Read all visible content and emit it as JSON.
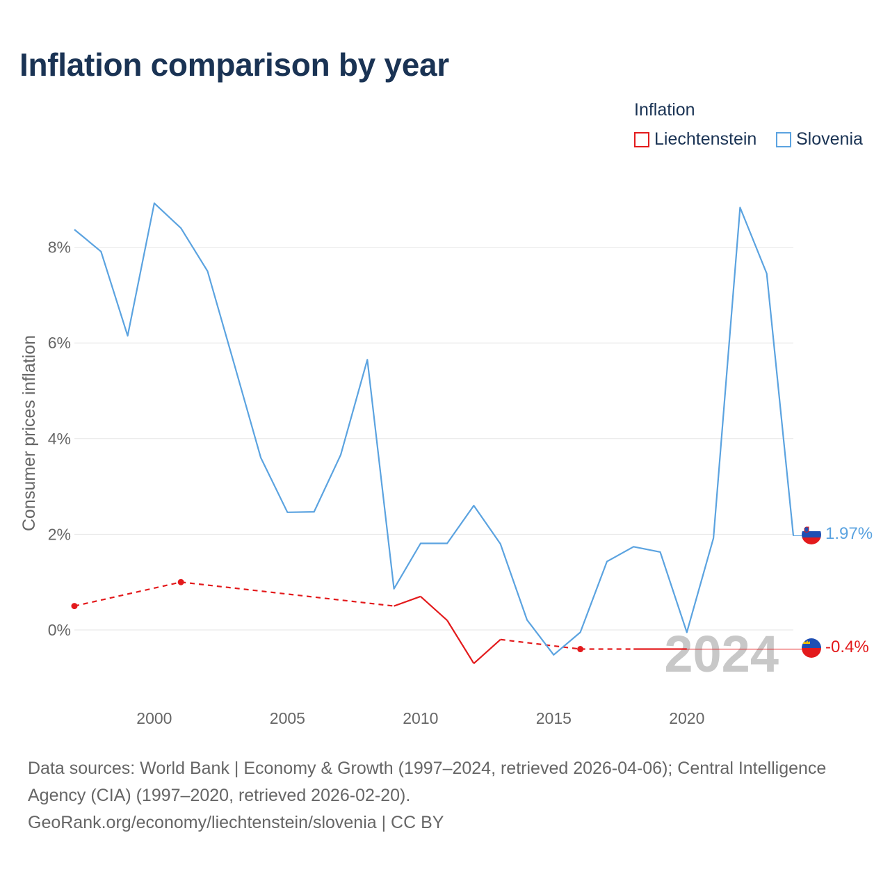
{
  "title": "Inflation comparison by year",
  "legend": {
    "title": "Inflation",
    "items": [
      {
        "label": "Liechtenstein",
        "color": "#e31a1c"
      },
      {
        "label": "Slovenia",
        "color": "#5ba3e0"
      }
    ]
  },
  "chart_data": {
    "type": "line",
    "title": "Inflation comparison by year",
    "xlabel": "",
    "ylabel": "Consumer prices inflation",
    "xlim": [
      1997,
      2024
    ],
    "ylim": [
      -1.5,
      9.5
    ],
    "x_ticks": [
      2000,
      2005,
      2010,
      2015,
      2020
    ],
    "x_tick_labels": [
      "2000",
      "2005",
      "2010",
      "2015",
      "2020"
    ],
    "y_ticks": [
      0,
      2,
      4,
      6,
      8
    ],
    "y_tick_labels": [
      "0%",
      "2%",
      "4%",
      "6%",
      "8%"
    ],
    "grid": true,
    "current_year_label": "2024",
    "series": [
      {
        "name": "Liechtenstein",
        "color": "#e31a1c",
        "points": [
          {
            "x": 1997,
            "y": 0.5
          },
          {
            "x": 2001,
            "y": 1.0
          },
          {
            "x": 2009,
            "y": 0.5
          },
          {
            "x": 2010,
            "y": 0.7
          },
          {
            "x": 2011,
            "y": 0.2
          },
          {
            "x": 2012,
            "y": -0.7
          },
          {
            "x": 2013,
            "y": -0.2
          },
          {
            "x": 2016,
            "y": -0.4
          },
          {
            "x": 2018,
            "y": -0.4
          },
          {
            "x": 2020,
            "y": -0.4
          }
        ],
        "segments": [
          {
            "from": 1997,
            "to": 2001,
            "style": "dashed"
          },
          {
            "from": 2001,
            "to": 2009,
            "style": "dashed"
          },
          {
            "from": 2009,
            "to": 2010,
            "style": "solid"
          },
          {
            "from": 2010,
            "to": 2011,
            "style": "solid"
          },
          {
            "from": 2011,
            "to": 2012,
            "style": "solid"
          },
          {
            "from": 2012,
            "to": 2013,
            "style": "solid"
          },
          {
            "from": 2013,
            "to": 2016,
            "style": "dashed"
          },
          {
            "from": 2016,
            "to": 2018,
            "style": "dashed"
          },
          {
            "from": 2018,
            "to": 2020,
            "style": "solid"
          }
        ],
        "markers": [
          1997,
          2001,
          2016
        ],
        "end_value_label": "-0.4%",
        "end_value": -0.4
      },
      {
        "name": "Slovenia",
        "color": "#5ba3e0",
        "points": [
          {
            "x": 1997,
            "y": 8.37
          },
          {
            "x": 1998,
            "y": 7.91
          },
          {
            "x": 1999,
            "y": 6.15
          },
          {
            "x": 2000,
            "y": 8.92
          },
          {
            "x": 2001,
            "y": 8.4
          },
          {
            "x": 2002,
            "y": 7.5
          },
          {
            "x": 2003,
            "y": 5.56
          },
          {
            "x": 2004,
            "y": 3.6
          },
          {
            "x": 2005,
            "y": 2.46
          },
          {
            "x": 2006,
            "y": 2.47
          },
          {
            "x": 2007,
            "y": 3.66
          },
          {
            "x": 2008,
            "y": 5.65
          },
          {
            "x": 2009,
            "y": 0.86
          },
          {
            "x": 2010,
            "y": 1.81
          },
          {
            "x": 2011,
            "y": 1.81
          },
          {
            "x": 2012,
            "y": 2.6
          },
          {
            "x": 2013,
            "y": 1.8
          },
          {
            "x": 2014,
            "y": 0.21
          },
          {
            "x": 2015,
            "y": -0.52
          },
          {
            "x": 2016,
            "y": -0.05
          },
          {
            "x": 2017,
            "y": 1.43
          },
          {
            "x": 2018,
            "y": 1.74
          },
          {
            "x": 2019,
            "y": 1.63
          },
          {
            "x": 2020,
            "y": -0.05
          },
          {
            "x": 2021,
            "y": 1.92
          },
          {
            "x": 2022,
            "y": 8.83
          },
          {
            "x": 2023,
            "y": 7.45
          },
          {
            "x": 2024,
            "y": 1.97
          }
        ],
        "end_value_label": "1.97%",
        "end_value": 1.97
      }
    ]
  },
  "footer": {
    "line1": "Data sources: World Bank | Economy & Growth (1997–2024, retrieved 2026-04-06); Central Intelligence",
    "line2": "Agency (CIA) (1997–2020, retrieved 2026-02-20).",
    "line3": "GeoRank.org/economy/liechtenstein/slovenia | CC BY"
  }
}
